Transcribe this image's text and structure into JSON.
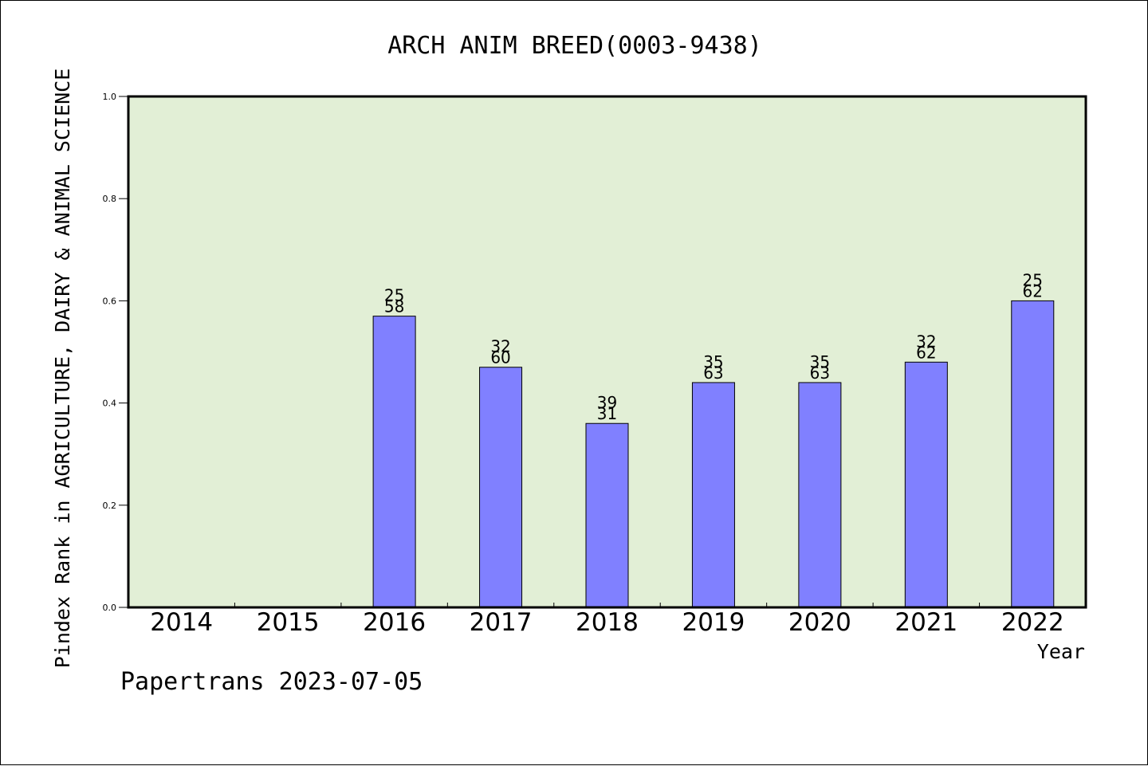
{
  "chart_data": {
    "type": "bar",
    "title": "ARCH ANIM BREED(0003-9438)",
    "xlabel": "Year",
    "ylabel": "Pindex Rank in AGRICULTURE, DAIRY & ANIMAL SCIENCE",
    "footer": "Papertrans 2023-07-05",
    "categories": [
      "2014",
      "2015",
      "2016",
      "2017",
      "2018",
      "2019",
      "2020",
      "2021",
      "2022"
    ],
    "values": [
      null,
      null,
      0.57,
      0.47,
      0.36,
      0.44,
      0.44,
      0.48,
      0.6
    ],
    "bar_labels_top": [
      null,
      null,
      "25",
      "32",
      "39",
      "35",
      "35",
      "32",
      "25"
    ],
    "bar_labels_bottom": [
      null,
      null,
      "58",
      "60",
      "31",
      "63",
      "63",
      "62",
      "62"
    ],
    "ylim": [
      0,
      1.0
    ],
    "yticks": [
      "0.0",
      "0.2",
      "0.4",
      "0.6",
      "0.8",
      "1.0"
    ],
    "grid": false,
    "colors": {
      "plot_background": "#e2efd6",
      "bar_fill": "#8080ff",
      "bar_stroke": "#000000"
    }
  }
}
